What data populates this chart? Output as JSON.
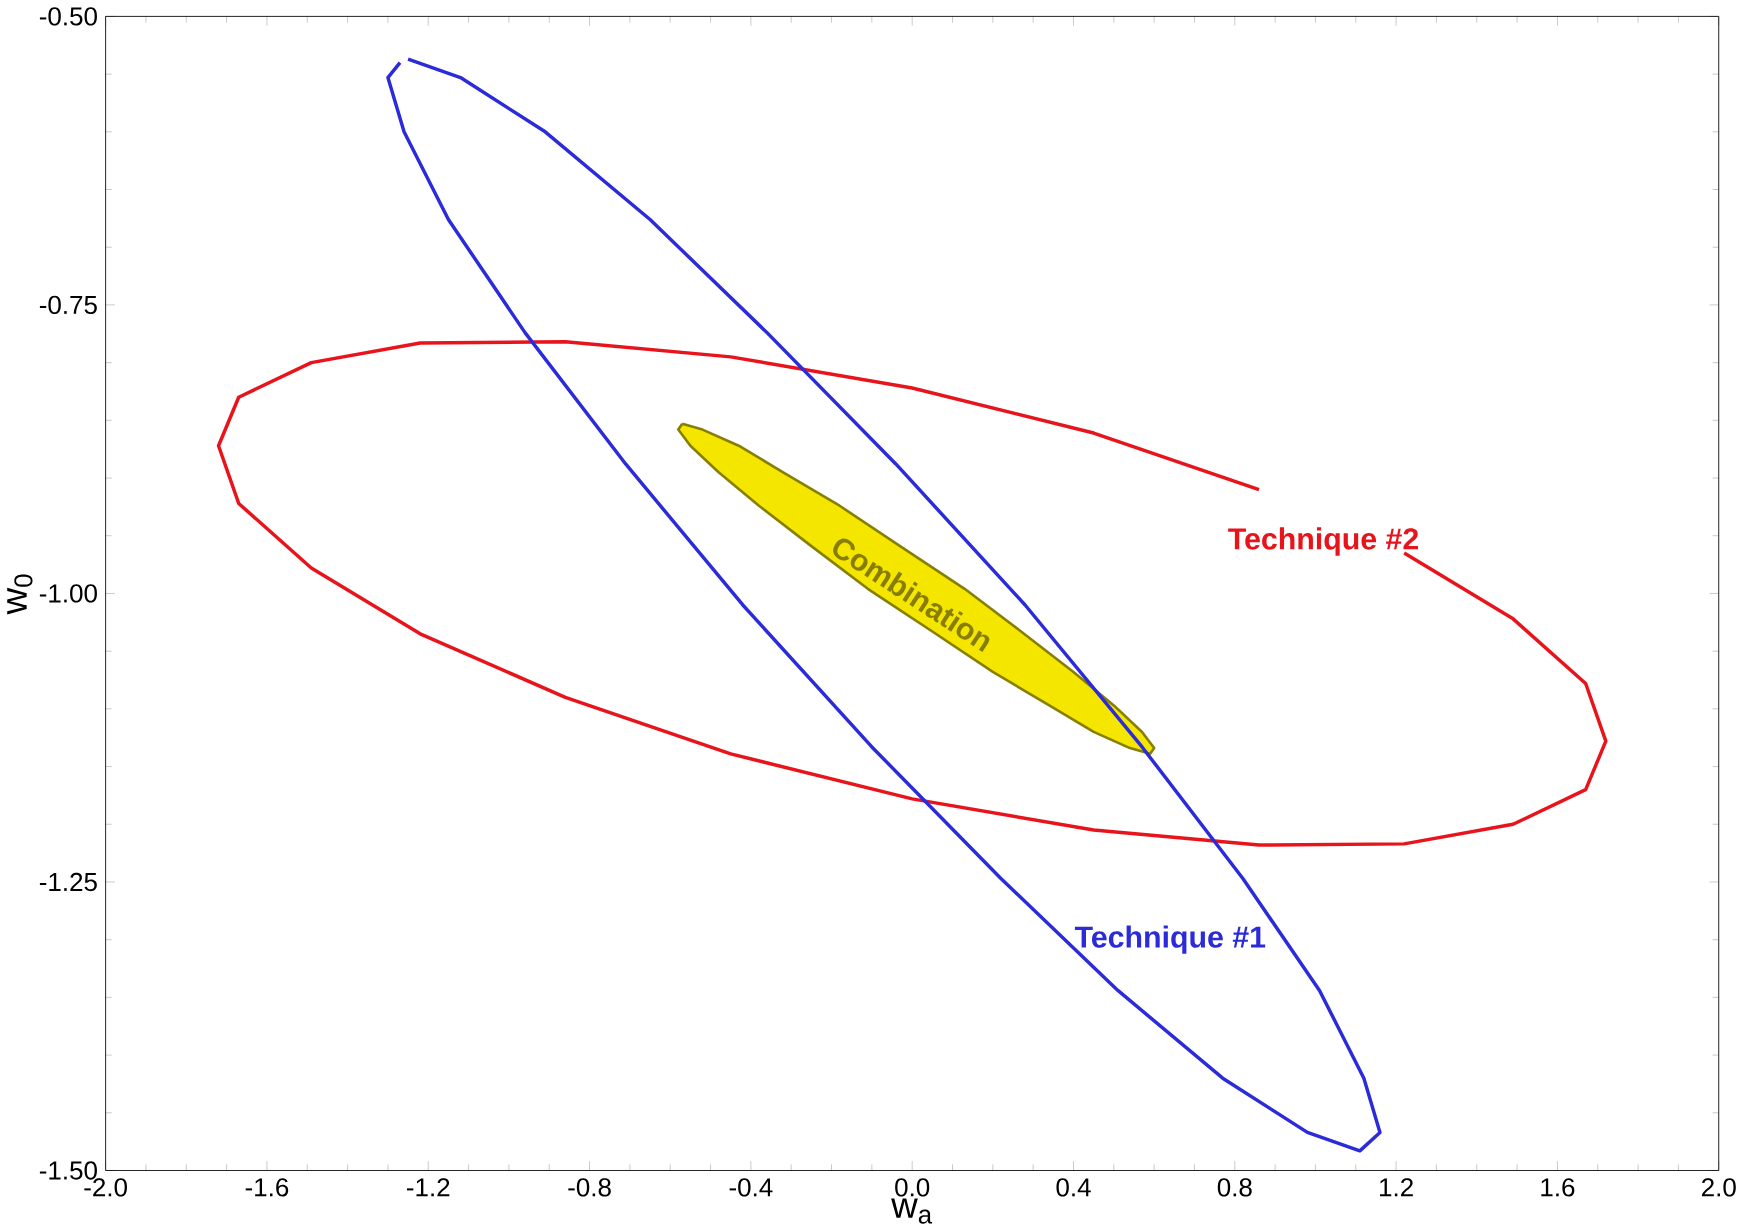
{
  "chart_data": {
    "type": "line",
    "xlabel": "w$_{a}$",
    "ylabel": "w$_{0}$",
    "xlim": [
      -2.0,
      2.0
    ],
    "ylim": [
      -1.5,
      -0.5
    ],
    "xticks": [
      {
        "value": -2.0,
        "label": "-2.0"
      },
      {
        "value": -1.6,
        "label": "-1.6"
      },
      {
        "value": -1.2,
        "label": "-1.2"
      },
      {
        "value": -0.8,
        "label": "-0.8"
      },
      {
        "value": -0.4,
        "label": "-0.4"
      },
      {
        "value": 0.0,
        "label": "0.0"
      },
      {
        "value": 0.4,
        "label": "0.4"
      },
      {
        "value": 0.8,
        "label": "0.8"
      },
      {
        "value": 1.2,
        "label": "1.2"
      },
      {
        "value": 1.6,
        "label": "1.6"
      },
      {
        "value": 2.0,
        "label": "2.0"
      }
    ],
    "yticks": [
      {
        "value": -0.5,
        "label": "-0.50"
      },
      {
        "value": -0.75,
        "label": "-0.75"
      },
      {
        "value": -1.0,
        "label": "-1.00"
      },
      {
        "value": -1.25,
        "label": "-1.25"
      },
      {
        "value": -1.5,
        "label": "-1.50"
      }
    ],
    "grid": false,
    "marker": "none",
    "line_style": "solid",
    "series": [
      {
        "name": "Combination",
        "type": "area",
        "color": "#f5e600",
        "x": [
          -0.57,
          -0.52,
          -0.43,
          -0.32,
          -0.18,
          -0.03,
          0.13,
          0.27,
          0.4,
          0.5,
          0.57,
          0.6,
          0.59,
          0.54,
          0.45,
          0.34,
          0.2,
          0.05,
          -0.11,
          -0.25,
          -0.38,
          -0.48,
          -0.55,
          -0.58,
          -0.57
        ],
        "values": [
          -0.853,
          -0.858,
          -0.872,
          -0.895,
          -0.924,
          -0.959,
          -0.996,
          -1.033,
          -1.068,
          -1.097,
          -1.12,
          -1.134,
          -1.139,
          -1.134,
          -1.12,
          -1.097,
          -1.068,
          -1.033,
          -0.996,
          -0.959,
          -0.924,
          -0.895,
          -0.872,
          -0.858,
          -0.853
        ]
      },
      {
        "name": "Technique #2",
        "color": "#e8141c",
        "x": [
          0.86,
          0.45,
          0.0,
          -0.45,
          -0.86,
          -1.22,
          -1.49,
          -1.67,
          -1.72,
          -1.67,
          -1.49,
          -1.22,
          -0.86,
          -0.45,
          0.0,
          0.45,
          0.86,
          1.22,
          1.49,
          1.67,
          1.72,
          1.67,
          1.49,
          1.22
        ],
        "values": [
          -0.91,
          -0.861,
          -0.822,
          -0.795,
          -0.782,
          -0.783,
          -0.8,
          -0.83,
          -0.872,
          -0.922,
          -0.978,
          -1.035,
          -1.09,
          -1.139,
          -1.178,
          -1.205,
          -1.218,
          -1.217,
          -1.2,
          -1.17,
          -1.128,
          -1.078,
          -1.022,
          -0.965
        ]
      },
      {
        "name": "Technique #1",
        "color": "#2b2bd9",
        "x": [
          -1.25,
          -1.12,
          -0.91,
          -0.65,
          -0.36,
          -0.04,
          0.28,
          0.57,
          0.82,
          1.01,
          1.12,
          1.16,
          1.11,
          0.98,
          0.77,
          0.51,
          0.22,
          -0.1,
          -0.42,
          -0.71,
          -0.96,
          -1.15,
          -1.26,
          -1.3,
          -1.27
        ],
        "values": [
          -0.537,
          -0.553,
          -0.6,
          -0.676,
          -0.774,
          -0.888,
          -1.01,
          -1.133,
          -1.247,
          -1.344,
          -1.42,
          -1.467,
          -1.483,
          -1.467,
          -1.42,
          -1.344,
          -1.247,
          -1.133,
          -1.01,
          -0.888,
          -0.774,
          -0.676,
          -0.6,
          -0.553,
          -0.54
        ]
      }
    ]
  }
}
